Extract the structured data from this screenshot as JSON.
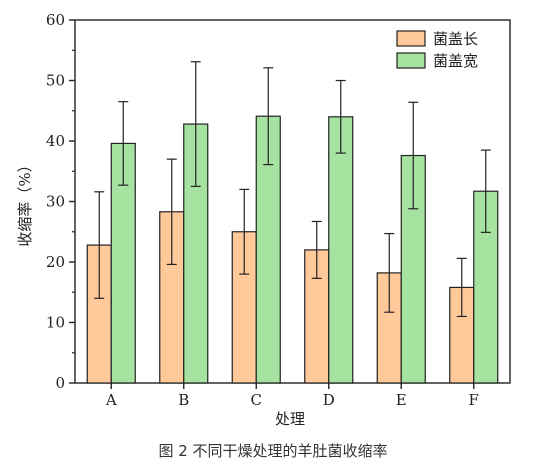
{
  "figure": {
    "caption": "图 2 不同干燥处理的羊肚菌收缩率"
  },
  "chart_data": {
    "type": "bar",
    "categories": [
      "A",
      "B",
      "C",
      "D",
      "E",
      "F"
    ],
    "series": [
      {
        "name": "菌盖长",
        "values": [
          22.8,
          28.3,
          25.0,
          22.0,
          18.2,
          15.8
        ],
        "errors": [
          8.8,
          8.7,
          7.0,
          4.7,
          6.5,
          4.8
        ],
        "color": "#FFC99A"
      },
      {
        "name": "菌盖宽",
        "values": [
          39.6,
          42.8,
          44.1,
          44.0,
          37.6,
          31.7
        ],
        "errors": [
          6.9,
          10.3,
          8.0,
          6.0,
          8.8,
          6.8
        ],
        "color": "#A6E3A0"
      }
    ],
    "xlabel": "处理",
    "ylabel": "收缩率（%）",
    "ylim": [
      0,
      60
    ],
    "yticks": [
      0,
      10,
      20,
      30,
      40,
      50,
      60
    ],
    "legend": "top-right",
    "grid": false
  }
}
